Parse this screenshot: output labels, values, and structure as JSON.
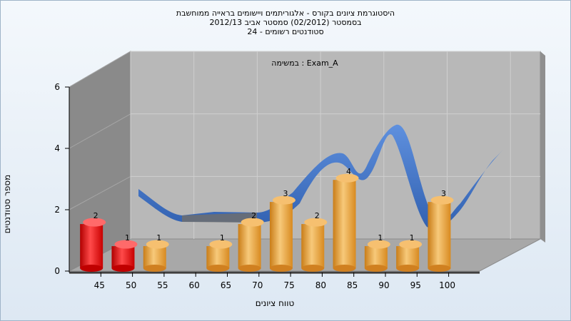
{
  "chart_data": {
    "type": "bar",
    "title_lines": [
      "היסטוגרמת ציונים בקורס - אלגוריתמים ויישומים בראייה ממוחשבת",
      "בסמסטר  (02/2012)  סמסטר אביב 2012/13",
      "סטודנטים רשומים - 24"
    ],
    "subtitle": "במשימה : Exam_A",
    "xlabel": "טווח ציונים",
    "ylabel": "מספר סטודנטים",
    "categories": [
      "45",
      "50",
      "55",
      "60",
      "65",
      "70",
      "75",
      "80",
      "85",
      "90",
      "95",
      "100"
    ],
    "values": [
      2,
      1,
      1,
      0,
      1,
      2,
      3,
      2,
      4,
      1,
      1,
      3
    ],
    "highlight_count": 2,
    "ylim": [
      0,
      6
    ],
    "yticks": [
      0,
      2,
      4,
      6
    ],
    "colors": {
      "low_bar": "#e02020",
      "bar": "#f0a030",
      "curve": "#3a6fc8",
      "wall_left": "#8a8a8a",
      "wall_back": "#b8b8b8",
      "floor": "#a8a8a8"
    }
  }
}
